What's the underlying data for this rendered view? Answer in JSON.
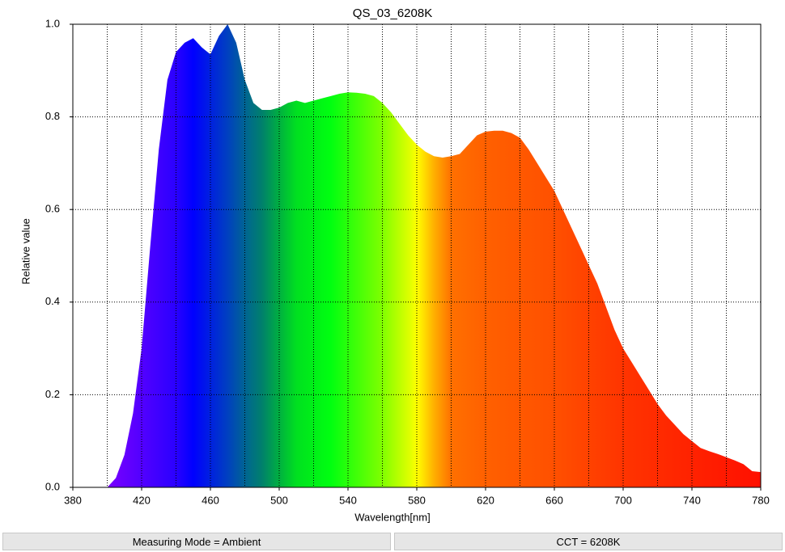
{
  "chart_data": {
    "type": "area",
    "title": "QS_03_6208K",
    "x_label": "Wavelength[nm]",
    "y_label": "Relative value",
    "x": [
      400,
      405,
      410,
      415,
      420,
      425,
      430,
      435,
      440,
      445,
      450,
      455,
      460,
      465,
      470,
      475,
      480,
      485,
      490,
      495,
      500,
      505,
      510,
      515,
      520,
      525,
      530,
      535,
      540,
      545,
      550,
      555,
      560,
      565,
      570,
      575,
      580,
      585,
      590,
      595,
      600,
      605,
      610,
      615,
      620,
      625,
      630,
      635,
      640,
      645,
      650,
      655,
      660,
      665,
      670,
      675,
      680,
      685,
      690,
      695,
      700,
      705,
      710,
      715,
      720,
      725,
      730,
      735,
      740,
      745,
      750,
      755,
      760,
      765,
      770,
      775,
      780
    ],
    "values": [
      0,
      0.02,
      0.07,
      0.16,
      0.3,
      0.52,
      0.73,
      0.88,
      0.94,
      0.96,
      0.97,
      0.95,
      0.935,
      0.975,
      1.0,
      0.96,
      0.88,
      0.83,
      0.815,
      0.815,
      0.82,
      0.83,
      0.835,
      0.83,
      0.835,
      0.84,
      0.845,
      0.85,
      0.853,
      0.852,
      0.85,
      0.845,
      0.83,
      0.81,
      0.785,
      0.76,
      0.74,
      0.725,
      0.715,
      0.712,
      0.715,
      0.72,
      0.74,
      0.76,
      0.768,
      0.77,
      0.77,
      0.765,
      0.755,
      0.73,
      0.7,
      0.67,
      0.64,
      0.6,
      0.56,
      0.52,
      0.48,
      0.44,
      0.39,
      0.34,
      0.3,
      0.27,
      0.24,
      0.21,
      0.18,
      0.155,
      0.135,
      0.115,
      0.1,
      0.085,
      0.078,
      0.072,
      0.065,
      0.058,
      0.05,
      0.035,
      0.033
    ],
    "xlim": [
      380,
      780
    ],
    "xticks": [
      380,
      420,
      460,
      500,
      540,
      580,
      620,
      660,
      700,
      740,
      780
    ],
    "xgrid": [
      400,
      420,
      440,
      460,
      480,
      500,
      520,
      540,
      560,
      580,
      600,
      620,
      640,
      660,
      680,
      700,
      720,
      740,
      760
    ],
    "ylim": [
      0,
      1
    ],
    "yticks": [
      {
        "value": 0,
        "label": "0.0"
      },
      {
        "value": 0.2,
        "label": "0.2"
      },
      {
        "value": 0.4,
        "label": "0.4"
      },
      {
        "value": 0.6,
        "label": "0.6"
      },
      {
        "value": 0.8,
        "label": "0.8"
      },
      {
        "value": 1,
        "label": "1.0"
      }
    ],
    "grid": true
  },
  "status_bar": [
    "Measuring Mode = Ambient",
    "CCT = 6208K"
  ]
}
